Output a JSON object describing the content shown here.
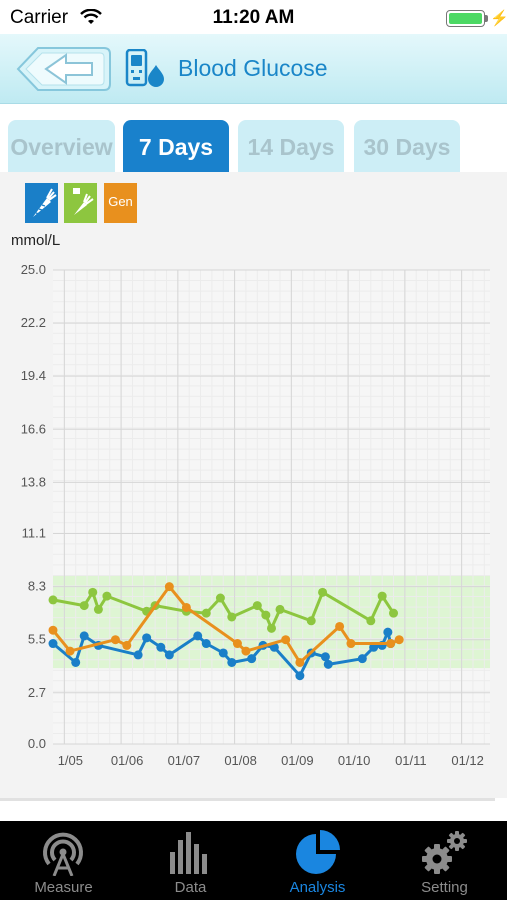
{
  "status_bar": {
    "carrier": "Carrier",
    "time": "11:20 AM",
    "icons": [
      "wifi-icon",
      "battery-icon",
      "charging-bolt-icon"
    ]
  },
  "header": {
    "title": "Blood Glucose",
    "back_icon": "back-arrow-icon",
    "device_icon": "glucometer-blood-drop-icon"
  },
  "tabs": [
    {
      "label": "Overview",
      "active": false
    },
    {
      "label": "7 Days",
      "active": true
    },
    {
      "label": "14 Days",
      "active": false
    },
    {
      "label": "30 Days",
      "active": false
    }
  ],
  "legend": [
    {
      "icon": "before-meal-carrot-icon",
      "color": "#1a7fc8"
    },
    {
      "icon": "after-meal-carrot-icon",
      "color": "#8dc63f"
    },
    {
      "label": "Gen",
      "color": "#e8901e"
    }
  ],
  "chart_data": {
    "type": "line",
    "ylabel": "mmol/L",
    "ylim": [
      0,
      25
    ],
    "y_ticks": [
      "0.0",
      "2.7",
      "5.5",
      "8.3",
      "11.1",
      "13.8",
      "16.6",
      "19.4",
      "22.2",
      "25.0"
    ],
    "xlim": [
      4.8,
      12.5
    ],
    "x_ticks": [
      {
        "x": 5,
        "label": "1/05"
      },
      {
        "x": 6,
        "label": "01/06"
      },
      {
        "x": 7,
        "label": "01/07"
      },
      {
        "x": 8,
        "label": "01/08"
      },
      {
        "x": 9,
        "label": "01/09"
      },
      {
        "x": 10,
        "label": "01/10"
      },
      {
        "x": 11,
        "label": "01/11"
      },
      {
        "x": 12,
        "label": "01/12"
      }
    ],
    "grid": true,
    "target_range": [
      4.0,
      8.9
    ],
    "target_color": "#def5d3",
    "series": [
      {
        "color": "#1a7fc8",
        "points": [
          [
            4.8,
            5.3
          ],
          [
            5.2,
            4.3
          ],
          [
            5.35,
            5.7
          ],
          [
            5.6,
            5.2
          ],
          [
            6.3,
            4.7
          ],
          [
            6.45,
            5.6
          ],
          [
            6.7,
            5.1
          ],
          [
            6.85,
            4.7
          ],
          [
            7.35,
            5.7
          ],
          [
            7.5,
            5.3
          ],
          [
            7.8,
            4.8
          ],
          [
            7.95,
            4.3
          ],
          [
            8.3,
            4.5
          ],
          [
            8.5,
            5.2
          ],
          [
            8.7,
            5.1
          ],
          [
            9.15,
            3.6
          ],
          [
            9.35,
            4.8
          ],
          [
            9.6,
            4.6
          ],
          [
            9.65,
            4.2
          ],
          [
            10.25,
            4.5
          ],
          [
            10.45,
            5.1
          ],
          [
            10.6,
            5.2
          ],
          [
            10.7,
            5.9
          ],
          [
            10.75,
            5.3
          ]
        ]
      },
      {
        "color": "#8dc63f",
        "points": [
          [
            4.8,
            7.6
          ],
          [
            5.35,
            7.3
          ],
          [
            5.5,
            8.0
          ],
          [
            5.6,
            7.1
          ],
          [
            5.75,
            7.8
          ],
          [
            6.45,
            7.0
          ],
          [
            6.6,
            7.3
          ],
          [
            7.15,
            7.0
          ],
          [
            7.5,
            6.9
          ],
          [
            7.75,
            7.7
          ],
          [
            7.95,
            6.7
          ],
          [
            8.4,
            7.3
          ],
          [
            8.55,
            6.8
          ],
          [
            8.65,
            6.1
          ],
          [
            8.8,
            7.1
          ],
          [
            9.35,
            6.5
          ],
          [
            9.55,
            8.0
          ],
          [
            10.4,
            6.5
          ],
          [
            10.6,
            7.8
          ],
          [
            10.8,
            6.9
          ]
        ]
      },
      {
        "color": "#e8901e",
        "points": [
          [
            4.8,
            6.0
          ],
          [
            5.1,
            4.9
          ],
          [
            5.9,
            5.5
          ],
          [
            6.1,
            5.2
          ],
          [
            6.85,
            8.3
          ],
          [
            7.15,
            7.2
          ],
          [
            8.05,
            5.3
          ],
          [
            8.2,
            4.9
          ],
          [
            8.9,
            5.5
          ],
          [
            9.15,
            4.3
          ],
          [
            9.85,
            6.2
          ],
          [
            10.05,
            5.3
          ],
          [
            10.75,
            5.3
          ],
          [
            10.9,
            5.5
          ]
        ]
      }
    ]
  },
  "tab_bar": [
    {
      "label": "Measure",
      "icon": "measure-signal-icon",
      "active": false
    },
    {
      "label": "Data",
      "icon": "bar-chart-icon",
      "active": false
    },
    {
      "label": "Analysis",
      "icon": "pie-chart-icon",
      "active": true
    },
    {
      "label": "Setting",
      "icon": "gears-icon",
      "active": false
    }
  ]
}
